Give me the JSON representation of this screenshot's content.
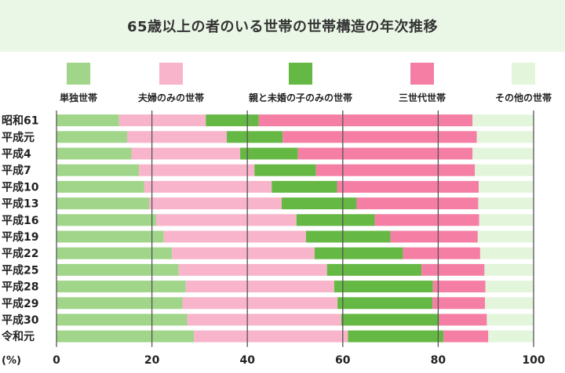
{
  "chart_data": {
    "type": "bar",
    "stacked": true,
    "orientation": "horizontal",
    "title": "65歳以上の者のいる世帯の世帯構造の年次推移",
    "unit_label": "(%)",
    "xlim": [
      0,
      100
    ],
    "x_ticks": [
      "0",
      "20",
      "40",
      "60",
      "80",
      "100"
    ],
    "grid": true,
    "legend_position": "top",
    "categories": [
      "昭和61",
      "平成元",
      "平成4",
      "平成7",
      "平成10",
      "平成13",
      "平成16",
      "平成19",
      "平成22",
      "平成25",
      "平成28",
      "平成29",
      "平成30",
      "令和元"
    ],
    "series": [
      {
        "name": "単独世帯",
        "color": "#a0d58a",
        "values": [
          13.1,
          14.8,
          15.7,
          17.3,
          18.4,
          19.4,
          20.9,
          22.5,
          24.2,
          25.6,
          27.1,
          26.4,
          27.4,
          28.8
        ]
      },
      {
        "name": "夫婦のみの世帯",
        "color": "#f8b4cb",
        "values": [
          18.2,
          20.9,
          22.8,
          24.2,
          26.7,
          27.8,
          29.4,
          29.8,
          29.9,
          31.1,
          31.1,
          32.5,
          32.3,
          32.3
        ]
      },
      {
        "name": "親と未婚の子のみの世帯",
        "color": "#65b843",
        "values": [
          11.1,
          11.7,
          12.1,
          12.9,
          13.7,
          15.7,
          16.4,
          17.7,
          18.5,
          19.8,
          20.7,
          19.9,
          20.5,
          20.0
        ]
      },
      {
        "name": "三世代世帯",
        "color": "#f57fa4",
        "values": [
          44.8,
          40.7,
          36.6,
          33.3,
          29.7,
          25.5,
          21.9,
          18.3,
          16.2,
          13.2,
          11.0,
          11.0,
          10.0,
          9.4
        ]
      },
      {
        "name": "その他の世帯",
        "color": "#e3f6dc",
        "values": [
          12.7,
          11.9,
          12.8,
          12.2,
          11.6,
          11.6,
          11.4,
          11.7,
          11.2,
          10.4,
          10.1,
          10.2,
          9.7,
          9.5
        ]
      }
    ]
  }
}
